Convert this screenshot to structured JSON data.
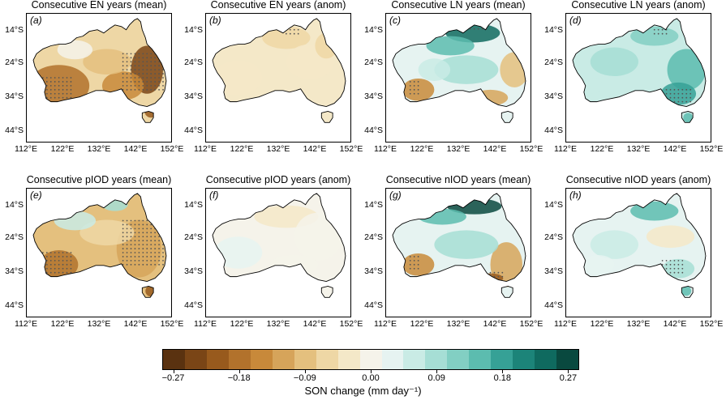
{
  "panels": [
    {
      "label": "(a)",
      "title": "Consecutive EN years (mean)"
    },
    {
      "label": "(b)",
      "title": "Consecutive EN years (anom)"
    },
    {
      "label": "(c)",
      "title": "Consecutive LN years (mean)"
    },
    {
      "label": "(d)",
      "title": "Consecutive LN years (anom)"
    },
    {
      "label": "(e)",
      "title": "Consecutive pIOD years (mean)"
    },
    {
      "label": "(f)",
      "title": "Consecutive pIOD years (anom)"
    },
    {
      "label": "(g)",
      "title": "Consecutive nIOD years (mean)"
    },
    {
      "label": "(h)",
      "title": "Consecutive nIOD years (anom)"
    }
  ],
  "lat_labels": [
    "14°S",
    "24°S",
    "34°S",
    "44°S"
  ],
  "lon_labels": [
    "112°E",
    "122°E",
    "132°E",
    "142°E",
    "152°E"
  ],
  "colorbar": {
    "title": "SON change (mm day⁻¹)",
    "ticks": [
      "−0.27",
      "−0.18",
      "−0.09",
      "0.00",
      "0.09",
      "0.18",
      "0.27"
    ],
    "colors": [
      "#5a3210",
      "#7a4516",
      "#985a1d",
      "#b2722c",
      "#c8893a",
      "#d6a45a",
      "#e4c07e",
      "#eed7a5",
      "#f4e8c8",
      "#f5f3ea",
      "#e6f3f1",
      "#c9ebe5",
      "#a6ded5",
      "#82cfc3",
      "#5cbcaf",
      "#36a196",
      "#1c8479",
      "#0f6a5f",
      "#09493f"
    ]
  }
}
